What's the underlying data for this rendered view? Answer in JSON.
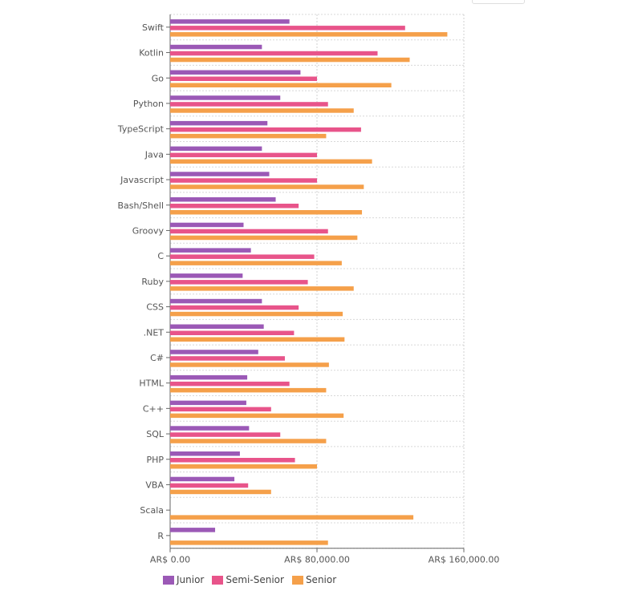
{
  "chart_data": {
    "type": "bar",
    "orientation": "horizontal",
    "categories": [
      "Swift",
      "Kotlin",
      "Go",
      "Python",
      "TypeScript",
      "Java",
      "Javascript",
      "Bash/Shell",
      "Groovy",
      "C",
      "Ruby",
      "CSS",
      ".NET",
      "C#",
      "HTML",
      "C++",
      "SQL",
      "PHP",
      "VBA",
      "Scala",
      "R"
    ],
    "series": [
      {
        "name": "Junior",
        "color": "#9b59b6",
        "values": [
          65000,
          50000,
          71000,
          60000,
          53000,
          50000,
          54000,
          57500,
          40000,
          44000,
          39500,
          50000,
          51000,
          48000,
          42000,
          41500,
          43000,
          38000,
          35000,
          0,
          24500
        ]
      },
      {
        "name": "Semi-Senior",
        "color": "#e8548a",
        "values": [
          128000,
          113000,
          80000,
          86000,
          104000,
          80000,
          80000,
          70000,
          86000,
          78500,
          75000,
          70000,
          67500,
          62500,
          65000,
          55000,
          60000,
          68000,
          42500,
          0,
          0
        ]
      },
      {
        "name": "Senior",
        "color": "#f5a04a",
        "values": [
          151000,
          130500,
          120500,
          100000,
          85000,
          110000,
          105500,
          104500,
          102000,
          93500,
          100000,
          94000,
          95000,
          86500,
          85000,
          94500,
          85000,
          80000,
          55000,
          132500,
          86000
        ]
      }
    ],
    "xlim": [
      0,
      160000
    ],
    "xticks": [
      0,
      80000,
      160000
    ],
    "xtick_labels": [
      "AR$ 0.00",
      "AR$ 80,000.00",
      "AR$ 160,000.00"
    ],
    "grid": true,
    "legend_position": "bottom-left"
  },
  "legend": {
    "items": [
      {
        "label": "Junior",
        "color": "#9b59b6"
      },
      {
        "label": "Semi-Senior",
        "color": "#e8548a"
      },
      {
        "label": "Senior",
        "color": "#f5a04a"
      }
    ]
  }
}
